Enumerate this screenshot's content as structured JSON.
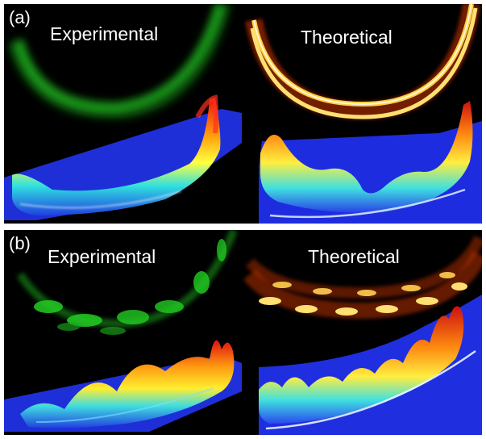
{
  "figure": {
    "panel_a": {
      "tag": "(a)",
      "left_title": "Experimental",
      "right_title": "Theoretical"
    },
    "panel_b": {
      "tag": "(b)",
      "left_title": "Experimental",
      "right_title": "Theoretical"
    }
  },
  "colors": {
    "background": "#000000",
    "experimental_ring": "#22cc22",
    "theoretical_ring": "#ffcc33",
    "surface_base": "#2233dd",
    "surface_peak": "#ee1111"
  }
}
